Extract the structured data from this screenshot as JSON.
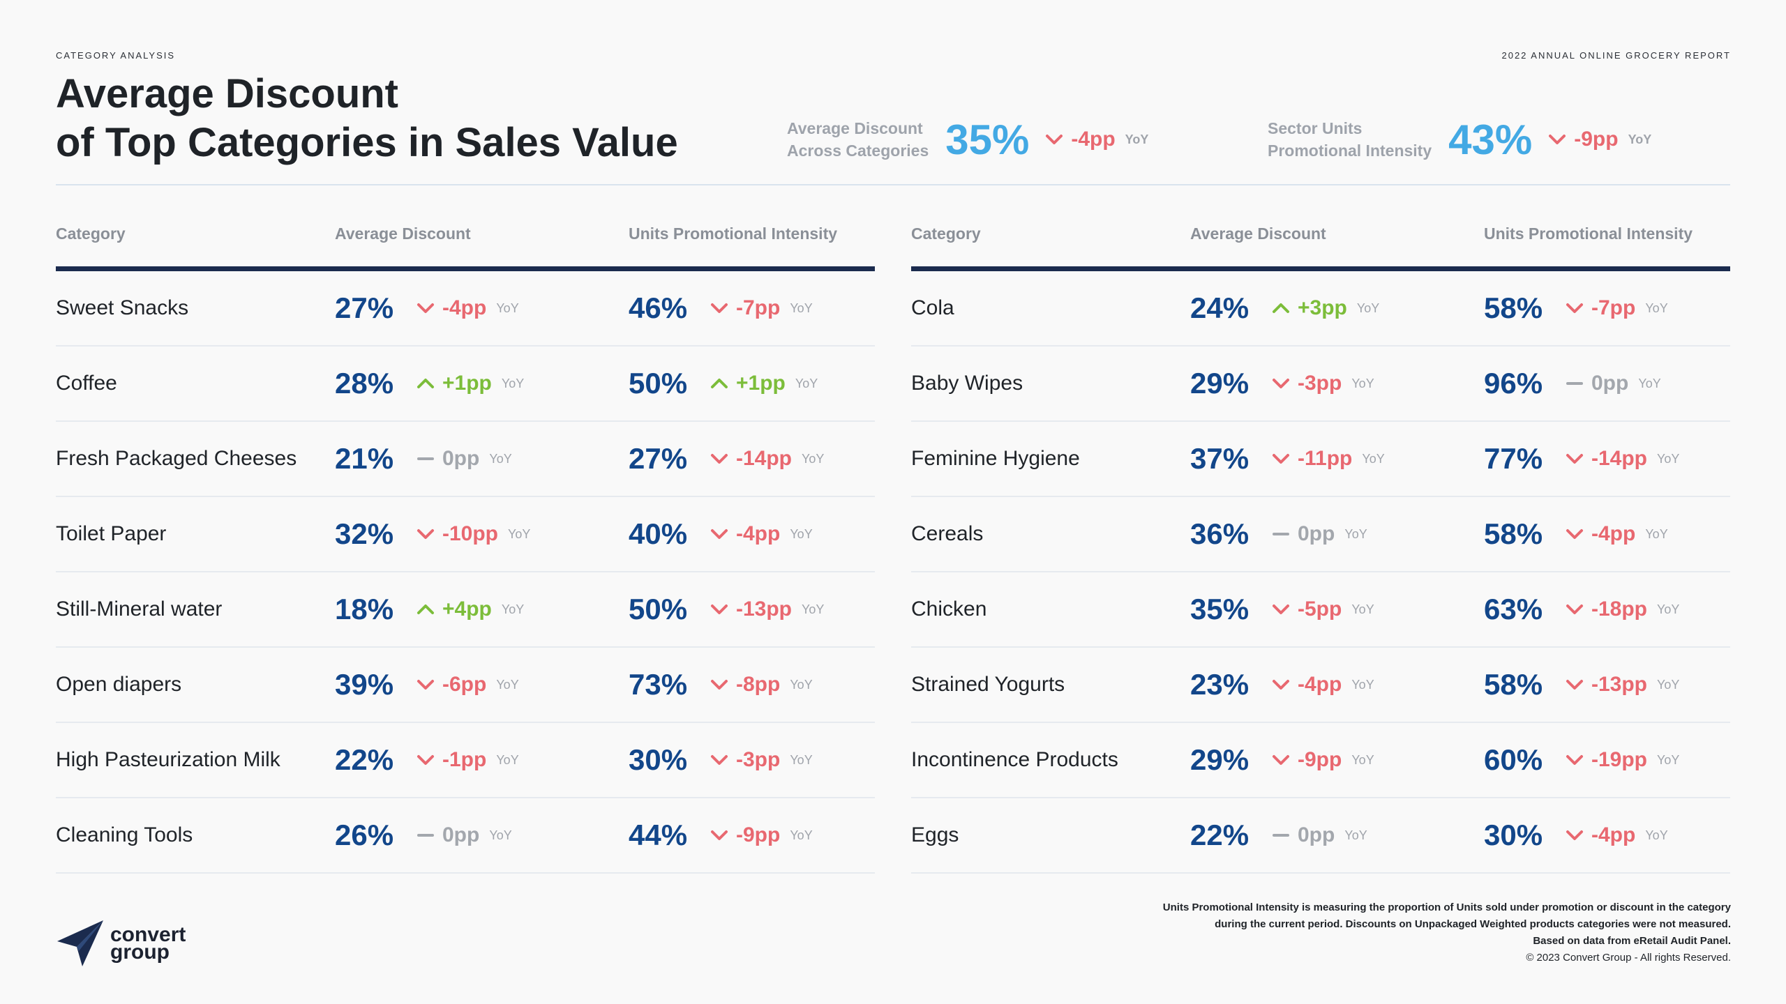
{
  "header": {
    "eyebrow_left": "CATEGORY ANALYSIS",
    "eyebrow_right": "2022 ANNUAL ONLINE GROCERY REPORT",
    "title_line1": "Average Discount",
    "title_line2": "of Top Categories in Sales Value"
  },
  "kpis": [
    {
      "label_line1": "Average Discount",
      "label_line2": "Across Categories",
      "value": "35%",
      "change": "-4pp",
      "direction": "down",
      "yoy": "YoY"
    },
    {
      "label_line1": "Sector Units",
      "label_line2": "Promotional Intensity",
      "value": "43%",
      "change": "-9pp",
      "direction": "down",
      "yoy": "YoY"
    }
  ],
  "columns": {
    "category": "Category",
    "avg_discount": "Average Discount",
    "units_promo": "Units Promotional Intensity"
  },
  "yoy_label": "YoY",
  "tables": [
    {
      "rows": [
        {
          "category": "Sweet Snacks",
          "discount": "27%",
          "discount_change": "-4pp",
          "discount_dir": "down",
          "promo": "46%",
          "promo_change": "-7pp",
          "promo_dir": "down"
        },
        {
          "category": "Coffee",
          "discount": "28%",
          "discount_change": "+1pp",
          "discount_dir": "up",
          "promo": "50%",
          "promo_change": "+1pp",
          "promo_dir": "up"
        },
        {
          "category": "Fresh Packaged Cheeses",
          "discount": "21%",
          "discount_change": "0pp",
          "discount_dir": "flat",
          "promo": "27%",
          "promo_change": "-14pp",
          "promo_dir": "down"
        },
        {
          "category": "Toilet Paper",
          "discount": "32%",
          "discount_change": "-10pp",
          "discount_dir": "down",
          "promo": "40%",
          "promo_change": "-4pp",
          "promo_dir": "down"
        },
        {
          "category": "Still-Mineral water",
          "discount": "18%",
          "discount_change": "+4pp",
          "discount_dir": "up",
          "promo": "50%",
          "promo_change": "-13pp",
          "promo_dir": "down"
        },
        {
          "category": "Open diapers",
          "discount": "39%",
          "discount_change": "-6pp",
          "discount_dir": "down",
          "promo": "73%",
          "promo_change": "-8pp",
          "promo_dir": "down"
        },
        {
          "category": "High Pasteurization Milk",
          "discount": "22%",
          "discount_change": "-1pp",
          "discount_dir": "down",
          "promo": "30%",
          "promo_change": "-3pp",
          "promo_dir": "down"
        },
        {
          "category": "Cleaning Tools",
          "discount": "26%",
          "discount_change": "0pp",
          "discount_dir": "flat",
          "promo": "44%",
          "promo_change": "-9pp",
          "promo_dir": "down"
        }
      ]
    },
    {
      "rows": [
        {
          "category": "Cola",
          "discount": "24%",
          "discount_change": "+3pp",
          "discount_dir": "up",
          "promo": "58%",
          "promo_change": "-7pp",
          "promo_dir": "down"
        },
        {
          "category": "Baby Wipes",
          "discount": "29%",
          "discount_change": "-3pp",
          "discount_dir": "down",
          "promo": "96%",
          "promo_change": "0pp",
          "promo_dir": "flat"
        },
        {
          "category": "Feminine Hygiene",
          "discount": "37%",
          "discount_change": "-11pp",
          "discount_dir": "down",
          "promo": "77%",
          "promo_change": "-14pp",
          "promo_dir": "down"
        },
        {
          "category": "Cereals",
          "discount": "36%",
          "discount_change": "0pp",
          "discount_dir": "flat",
          "promo": "58%",
          "promo_change": "-4pp",
          "promo_dir": "down"
        },
        {
          "category": "Chicken",
          "discount": "35%",
          "discount_change": "-5pp",
          "discount_dir": "down",
          "promo": "63%",
          "promo_change": "-18pp",
          "promo_dir": "down"
        },
        {
          "category": "Strained Yogurts",
          "discount": "23%",
          "discount_change": "-4pp",
          "discount_dir": "down",
          "promo": "58%",
          "promo_change": "-13pp",
          "promo_dir": "down"
        },
        {
          "category": "Incontinence Products",
          "discount": "29%",
          "discount_change": "-9pp",
          "discount_dir": "down",
          "promo": "60%",
          "promo_change": "-19pp",
          "promo_dir": "down"
        },
        {
          "category": "Eggs",
          "discount": "22%",
          "discount_change": "0pp",
          "discount_dir": "flat",
          "promo": "30%",
          "promo_change": "-4pp",
          "promo_dir": "down"
        }
      ]
    }
  ],
  "logo": {
    "line1": "convert",
    "line2": "group",
    "color": "#1b2b4e"
  },
  "footnote": {
    "line1": "Units Promotional Intensity is measuring the proportion of Units sold under promotion or discount in the category",
    "line2": "during the current period. Discounts on Unpackaged Weighted products categories were not measured.",
    "line3": "Based on data from eRetail Audit Panel.",
    "line4": "© 2023 Convert Group - All rights Reserved."
  },
  "colors": {
    "accent_kpi": "#43a9e4",
    "value_blue": "#12468a",
    "down": "#e86870",
    "up": "#7cbd3a",
    "flat": "#a3a7ad",
    "rule": "#1b2b4e"
  }
}
